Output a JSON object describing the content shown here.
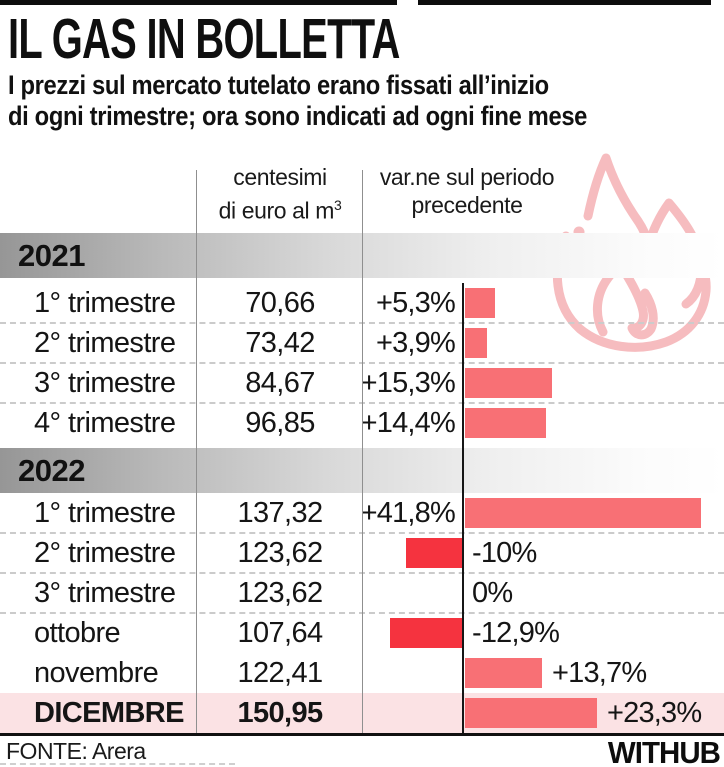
{
  "page": {
    "title": "IL GAS IN BOLLETTA",
    "subtitle_line1": "I prezzi sul mercato tutelato erano fissati all’inizio",
    "subtitle_line2": "di ogni trimestre; ora sono indicati ad ogni fine mese",
    "source": "FONTE: Arera",
    "brand": "WITHUB"
  },
  "table": {
    "col_price": {
      "line1": "centesimi",
      "line2": "di euro al m",
      "sup": "3"
    },
    "col_change": {
      "line1": "var.ne sul periodo",
      "line2": "precedente"
    },
    "sections": [
      {
        "year": "2021",
        "rows": [
          {
            "period": "1° trimestre",
            "price": "70,66",
            "change_label": "+5,3%",
            "change_pct": 5.3,
            "label_pos": "left",
            "divider_after": true
          },
          {
            "period": "2° trimestre",
            "price": "73,42",
            "change_label": "+3,9%",
            "change_pct": 3.9,
            "label_pos": "left",
            "divider_after": true
          },
          {
            "period": "3° trimestre",
            "price": "84,67",
            "change_label": "+15,3%",
            "change_pct": 15.3,
            "label_pos": "left",
            "divider_after": true
          },
          {
            "period": "4° trimestre",
            "price": "96,85",
            "change_label": "+14,4%",
            "change_pct": 14.4,
            "label_pos": "left",
            "divider_after": false
          }
        ]
      },
      {
        "year": "2022",
        "rows": [
          {
            "period": "1° trimestre",
            "price": "137,32",
            "change_label": "+41,8%",
            "change_pct": 41.8,
            "label_pos": "left",
            "divider_after": true
          },
          {
            "period": "2° trimestre",
            "price": "123,62",
            "change_label": "-10%",
            "change_pct": -10,
            "label_pos": "right",
            "divider_after": true
          },
          {
            "period": "3° trimestre",
            "price": "123,62",
            "change_label": "0%",
            "change_pct": 0,
            "label_pos": "right",
            "divider_after": true
          },
          {
            "period": "ottobre",
            "price": "107,64",
            "change_label": "-12,9%",
            "change_pct": -12.9,
            "label_pos": "right",
            "divider_after": false
          },
          {
            "period": "novembre",
            "price": "122,41",
            "change_label": "+13,7%",
            "change_pct": 13.7,
            "label_pos": "after_bar",
            "divider_after": false
          },
          {
            "period": "DICEMBRE",
            "price": "150,95",
            "change_label": "+23,3%",
            "change_pct": 23.3,
            "label_pos": "after_bar",
            "divider_after": false,
            "highlight": true
          }
        ]
      }
    ]
  },
  "colors": {
    "bar_positive": "#F87075",
    "bar_negative": "#F5333F",
    "highlight_row_bg": "#FBE2E4",
    "flame": "#F6BCBF",
    "band_gradient_start": "#969696",
    "divider": "#CBCBCB",
    "baseline": "#161616"
  },
  "icons": {
    "flame": "flame-icon"
  },
  "chart_data": {
    "type": "bar",
    "title": "IL GAS IN BOLLETTA",
    "subtitle": "I prezzi sul mercato tutelato erano fissati all’inizio di ogni trimestre; ora sono indicati ad ogni fine mese",
    "value_column_label": "centesimi di euro al m³",
    "bar_column_label": "var.ne sul periodo precedente",
    "categories": [
      "2021 1° trimestre",
      "2021 2° trimestre",
      "2021 3° trimestre",
      "2021 4° trimestre",
      "2022 1° trimestre",
      "2022 2° trimestre",
      "2022 3° trimestre",
      "2022 ottobre",
      "2022 novembre",
      "2022 DICEMBRE"
    ],
    "series": [
      {
        "name": "prezzo (centesimi di euro al m³)",
        "values": [
          70.66,
          73.42,
          84.67,
          96.85,
          137.32,
          123.62,
          123.62,
          107.64,
          122.41,
          150.95
        ]
      },
      {
        "name": "variazione sul periodo precedente (%)",
        "values": [
          5.3,
          3.9,
          15.3,
          14.4,
          41.8,
          -10,
          0,
          -12.9,
          13.7,
          23.3
        ]
      }
    ],
    "orientation": "horizontal",
    "baseline_value": 0,
    "grid": "dashed-row-separators",
    "legend_position": "none",
    "source": "FONTE: Arera"
  }
}
